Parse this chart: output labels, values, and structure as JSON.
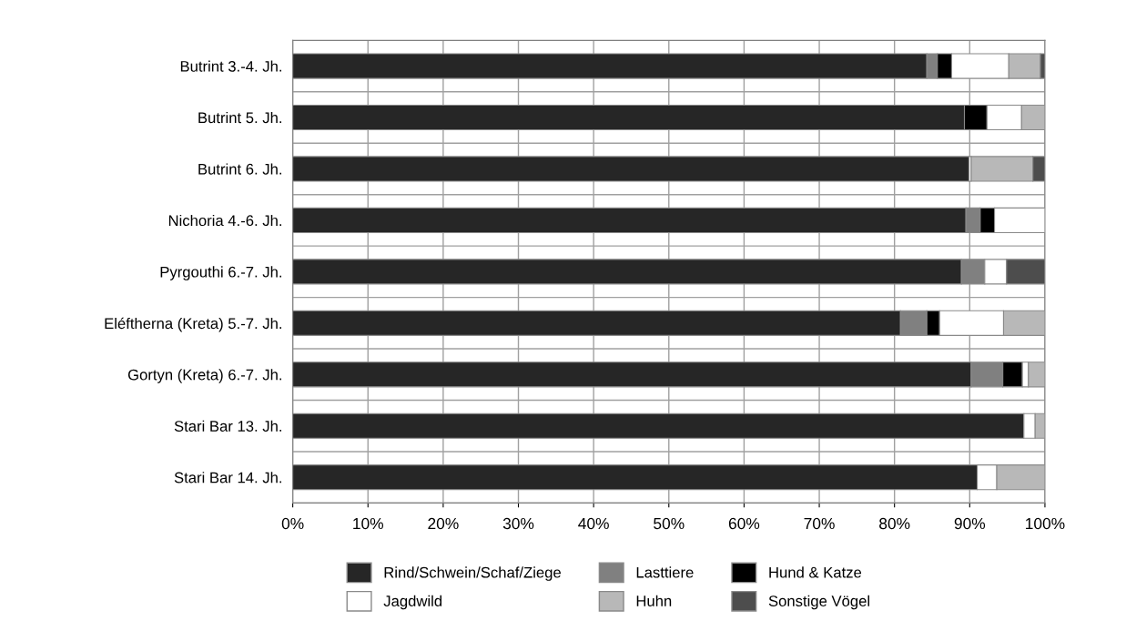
{
  "chart_data": {
    "type": "bar",
    "orientation": "horizontal",
    "stacked": true,
    "categories": [
      "Butrint 3.-4. Jh.",
      "Butrint 5. Jh.",
      "Butrint 6. Jh.",
      "Nichoria 4.-6. Jh.",
      "Pyrgouthi 6.-7. Jh.",
      "Eléftherna (Kreta) 5.-7. Jh.",
      "Gortyn (Kreta) 6.-7. Jh.",
      "Stari Bar 13. Jh.",
      "Stari Bar 14. Jh."
    ],
    "series": [
      {
        "name": "Rind/Schwein/Schaf/Ziege",
        "color": "#262626",
        "values": [
          84.3,
          89.3,
          89.9,
          89.5,
          88.9,
          80.8,
          90.2,
          97.2,
          91.0
        ]
      },
      {
        "name": "Lasttiere",
        "color": "#808080",
        "values": [
          1.4,
          null,
          null,
          1.9,
          3.1,
          3.5,
          4.2,
          null,
          null
        ]
      },
      {
        "name": "Hund & Katze",
        "color": "#000000",
        "values": [
          1.9,
          3.0,
          null,
          1.9,
          null,
          1.7,
          2.6,
          null,
          null
        ]
      },
      {
        "name": "Jagdwild",
        "color": "#ffffff",
        "values": [
          7.6,
          4.6,
          0.3,
          6.7,
          2.9,
          8.5,
          0.8,
          1.5,
          2.6
        ]
      },
      {
        "name": "Huhn",
        "color": "#b8b8b8",
        "values": [
          4.2,
          3.1,
          8.2,
          null,
          null,
          5.5,
          2.2,
          1.3,
          6.4
        ]
      },
      {
        "name": "Sonstige Vögel",
        "color": "#4d4d4d",
        "values": [
          0.6,
          null,
          1.6,
          null,
          5.1,
          null,
          null,
          null,
          null
        ]
      }
    ],
    "xlim": [
      0,
      100
    ],
    "xticks": [
      {
        "value": 0,
        "label": "0%"
      },
      {
        "value": 10,
        "label": "10%"
      },
      {
        "value": 20,
        "label": "20%"
      },
      {
        "value": 30,
        "label": "30%"
      },
      {
        "value": 40,
        "label": "40%"
      },
      {
        "value": 50,
        "label": "50%"
      },
      {
        "value": 60,
        "label": "60%"
      },
      {
        "value": 70,
        "label": "70%"
      },
      {
        "value": 80,
        "label": "80%"
      },
      {
        "value": 90,
        "label": "90%"
      },
      {
        "value": 100,
        "label": "100%"
      }
    ],
    "grid": "x",
    "legend": "bottom"
  }
}
